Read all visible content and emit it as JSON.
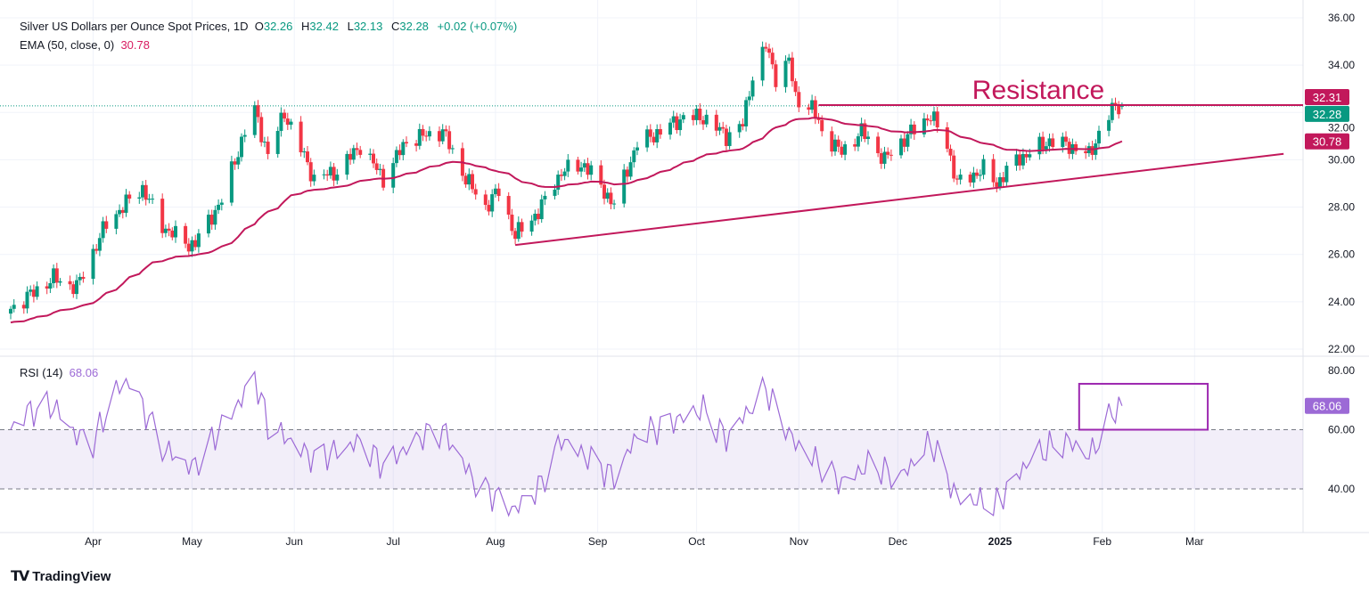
{
  "header": {
    "symbol": "Silver US Dollars per Ounce Spot Prices, 1D",
    "o_label": "O",
    "o": "32.26",
    "h_label": "H",
    "h": "32.42",
    "l_label": "L",
    "l": "32.13",
    "c_label": "C",
    "c": "32.28",
    "change": "+0.02 (+0.07%)",
    "ema_label": "EMA (50, close, 0)",
    "ema_value": "30.78",
    "rsi_label": "RSI (14)",
    "rsi_value": "68.06"
  },
  "branding": "TradingView",
  "colors": {
    "up": "#089981",
    "down": "#f23645",
    "ema": "#c2185b",
    "rsi": "#9c6ad6",
    "annotation": "#c2185b"
  },
  "chart_data": {
    "type": "candlestick",
    "title": "Silver US Dollars per Ounce Spot Prices, 1D",
    "ylim": [
      22,
      36
    ],
    "y_ticks": [
      "36.00",
      "34.00",
      "32.00",
      "30.00",
      "28.00",
      "26.00",
      "24.00",
      "22.00"
    ],
    "x_ticks": [
      {
        "label": "Apr",
        "date": "2024-04-01"
      },
      {
        "label": "May",
        "date": "2024-05-01"
      },
      {
        "label": "Jun",
        "date": "2024-06-01"
      },
      {
        "label": "Jul",
        "date": "2024-07-01"
      },
      {
        "label": "Aug",
        "date": "2024-08-01"
      },
      {
        "label": "Sep",
        "date": "2024-09-01"
      },
      {
        "label": "Oct",
        "date": "2024-10-01"
      },
      {
        "label": "Nov",
        "date": "2024-11-01"
      },
      {
        "label": "Dec",
        "date": "2024-12-01"
      },
      {
        "label": "2025",
        "date": "2025-01-01"
      },
      {
        "label": "Feb",
        "date": "2025-02-01"
      },
      {
        "label": "Mar",
        "date": "2025-03-01"
      }
    ],
    "close_anchors": [
      [
        "2024-03-07",
        23.7
      ],
      [
        "2024-03-20",
        25.0
      ],
      [
        "2024-03-27",
        24.6
      ],
      [
        "2024-04-05",
        27.3
      ],
      [
        "2024-04-12",
        28.3
      ],
      [
        "2024-04-16",
        28.8
      ],
      [
        "2024-04-22",
        27.2
      ],
      [
        "2024-04-30",
        26.4
      ],
      [
        "2024-05-02",
        26.5
      ],
      [
        "2024-05-10",
        28.3
      ],
      [
        "2024-05-17",
        31.2
      ],
      [
        "2024-05-20",
        32.1
      ],
      [
        "2024-05-24",
        30.2
      ],
      [
        "2024-05-29",
        32.0
      ],
      [
        "2024-06-07",
        29.2
      ],
      [
        "2024-06-14",
        29.5
      ],
      [
        "2024-06-21",
        30.6
      ],
      [
        "2024-06-28",
        29.2
      ],
      [
        "2024-07-05",
        30.8
      ],
      [
        "2024-07-10",
        31.0
      ],
      [
        "2024-07-16",
        31.2
      ],
      [
        "2024-07-23",
        29.2
      ],
      [
        "2024-07-29",
        28.0
      ],
      [
        "2024-08-02",
        28.7
      ],
      [
        "2024-08-07",
        26.8
      ],
      [
        "2024-08-14",
        27.8
      ],
      [
        "2024-08-21",
        29.5
      ],
      [
        "2024-08-28",
        29.8
      ],
      [
        "2024-09-06",
        28.1
      ],
      [
        "2024-09-13",
        30.7
      ],
      [
        "2024-09-20",
        31.2
      ],
      [
        "2024-09-27",
        31.8
      ],
      [
        "2024-10-03",
        31.8
      ],
      [
        "2024-10-10",
        31.0
      ],
      [
        "2024-10-15",
        31.5
      ],
      [
        "2024-10-18",
        33.6
      ],
      [
        "2024-10-22",
        34.8
      ],
      [
        "2024-10-25",
        33.5
      ],
      [
        "2024-10-29",
        34.2
      ],
      [
        "2024-10-31",
        32.6
      ],
      [
        "2024-11-05",
        32.2
      ],
      [
        "2024-11-08",
        31.2
      ],
      [
        "2024-11-14",
        30.3
      ],
      [
        "2024-11-20",
        31.2
      ],
      [
        "2024-11-27",
        30.0
      ],
      [
        "2024-12-03",
        30.9
      ],
      [
        "2024-12-11",
        31.9
      ],
      [
        "2024-12-16",
        30.6
      ],
      [
        "2024-12-19",
        29.0
      ],
      [
        "2024-12-27",
        29.6
      ],
      [
        "2024-12-31",
        29.0
      ],
      [
        "2025-01-06",
        30.0
      ],
      [
        "2025-01-10",
        30.3
      ],
      [
        "2025-01-16",
        30.8
      ],
      [
        "2025-01-22",
        30.6
      ],
      [
        "2025-01-28",
        30.2
      ],
      [
        "2025-02-01",
        31.4
      ],
      [
        "2025-02-05",
        32.3
      ],
      [
        "2025-02-07",
        32.28
      ]
    ],
    "last_bar": {
      "open": 32.26,
      "high": 32.42,
      "low": 32.13,
      "close": 32.28
    },
    "ema": {
      "period": 50,
      "start": 23.1,
      "last": 30.78
    },
    "price_labels": [
      {
        "text": "32.31",
        "kind": "resistance"
      },
      {
        "text": "32.28",
        "kind": "last"
      },
      {
        "text": "30.78",
        "kind": "ema"
      }
    ],
    "annotations": {
      "resistance": {
        "label": "Resistance",
        "price": 32.31,
        "from": "2024-11-07"
      },
      "trendline": {
        "from": [
          "2024-08-07",
          26.4
        ],
        "to": [
          "2025-03-28",
          30.25
        ]
      },
      "rsi_box": {
        "from": "2025-01-25",
        "to": "2025-03-05",
        "rsi_range": [
          60,
          75.5
        ]
      }
    },
    "rsi": {
      "ylim": [
        30,
        82
      ],
      "y_ticks": [
        "80.00",
        "60.00",
        "40.00"
      ],
      "levels": [
        60,
        40
      ],
      "last": "68.06",
      "anchors": [
        [
          "2024-03-07",
          60
        ],
        [
          "2024-03-12",
          66
        ],
        [
          "2024-03-20",
          68
        ],
        [
          "2024-03-27",
          58
        ],
        [
          "2024-04-01",
          56
        ],
        [
          "2024-04-08",
          73
        ],
        [
          "2024-04-12",
          77
        ],
        [
          "2024-04-16",
          68
        ],
        [
          "2024-04-22",
          54
        ],
        [
          "2024-05-01",
          47
        ],
        [
          "2024-05-17",
          72
        ],
        [
          "2024-05-20",
          78
        ],
        [
          "2024-05-24",
          62
        ],
        [
          "2024-06-07",
          50
        ],
        [
          "2024-06-21",
          56
        ],
        [
          "2024-06-28",
          48
        ],
        [
          "2024-07-10",
          58
        ],
        [
          "2024-07-16",
          60
        ],
        [
          "2024-07-26",
          42
        ],
        [
          "2024-08-07",
          33
        ],
        [
          "2024-08-14",
          40
        ],
        [
          "2024-08-21",
          57
        ],
        [
          "2024-09-06",
          44
        ],
        [
          "2024-09-13",
          58
        ],
        [
          "2024-10-03",
          67
        ],
        [
          "2024-10-10",
          57
        ],
        [
          "2024-10-22",
          74
        ],
        [
          "2024-10-31",
          55
        ],
        [
          "2024-11-14",
          42
        ],
        [
          "2024-11-22",
          48
        ],
        [
          "2024-12-02",
          44
        ],
        [
          "2024-12-11",
          56
        ],
        [
          "2024-12-19",
          37
        ],
        [
          "2024-12-31",
          35
        ],
        [
          "2025-01-10",
          50
        ],
        [
          "2025-01-16",
          54
        ],
        [
          "2025-01-22",
          56
        ],
        [
          "2025-01-28",
          51
        ],
        [
          "2025-02-05",
          67
        ],
        [
          "2025-02-07",
          68.06
        ]
      ]
    }
  }
}
